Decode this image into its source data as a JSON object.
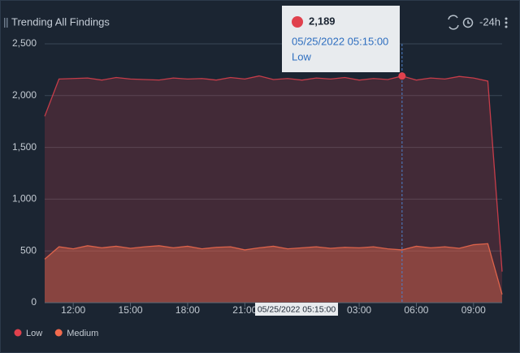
{
  "chart_data": {
    "type": "area",
    "title": "Trending All Findings",
    "time_range": "-24h",
    "x": [
      10.5,
      11.25,
      12,
      12.75,
      13.5,
      14.25,
      15,
      15.75,
      16.5,
      17.25,
      18,
      18.75,
      19.5,
      20.25,
      21,
      21.75,
      22.5,
      23.25,
      24,
      24.75,
      25.5,
      26.25,
      27,
      27.75,
      28.5,
      29.25,
      30,
      30.75,
      31.5,
      32.25,
      33,
      33.75,
      34.5
    ],
    "series": [
      {
        "name": "Low",
        "color": "#e0414d",
        "values": [
          1800,
          2160,
          2165,
          2170,
          2150,
          2175,
          2160,
          2155,
          2150,
          2170,
          2160,
          2165,
          2150,
          2175,
          2160,
          2190,
          2155,
          2165,
          2150,
          2170,
          2160,
          2175,
          2150,
          2165,
          2155,
          2189,
          2150,
          2170,
          2160,
          2185,
          2170,
          2140,
          300
        ]
      },
      {
        "name": "Medium",
        "color": "#f26b4e",
        "values": [
          420,
          540,
          520,
          550,
          530,
          545,
          525,
          540,
          550,
          530,
          545,
          520,
          535,
          540,
          510,
          530,
          545,
          520,
          530,
          540,
          525,
          535,
          530,
          540,
          520,
          510,
          545,
          530,
          540,
          525,
          560,
          570,
          80
        ]
      }
    ],
    "xlim": [
      10.5,
      34.5
    ],
    "xticks": [
      {
        "value": 12,
        "label": "12:00"
      },
      {
        "value": 15,
        "label": "15:00"
      },
      {
        "value": 18,
        "label": "18:00"
      },
      {
        "value": 21,
        "label": "21:00"
      },
      {
        "value": 27,
        "label": "03:00"
      },
      {
        "value": 30,
        "label": "06:00"
      },
      {
        "value": 33,
        "label": "09:00"
      }
    ],
    "ylim": [
      0,
      2500
    ],
    "yticks": [
      0,
      500,
      {
        "value": 1000,
        "label": "1,000"
      },
      {
        "value": 1500,
        "label": "1,500"
      },
      {
        "value": 2000,
        "label": "2,000"
      },
      {
        "value": 2500,
        "label": "2,500"
      }
    ],
    "grid": true,
    "tooltip": {
      "x": 29.25,
      "value": 2189,
      "value_label": "2,189",
      "time": "05/25/2022 05:15:00"
    }
  }
}
